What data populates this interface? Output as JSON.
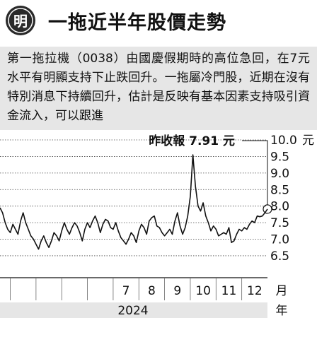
{
  "header": {
    "logo_char": "明",
    "title": "一拖近半年股價走勢"
  },
  "blurb": {
    "text": "第一拖拉機（0038）由國慶假期時的高位急回，在7元水平有明顯支持下止跌回升。一拖屬冷門股，近期在沒有特別消息下持續回升，估計是反映有基本因素支持吸引資金流入，可以跟進"
  },
  "colors": {
    "line": "#111111",
    "grid": "#444444",
    "header_circle": "#2a2a2a",
    "blurb_bg": "#e6e6e6",
    "year_band": "#e6e6e6"
  },
  "chart_data": {
    "type": "line",
    "annotation": "昨收報 7.91 元",
    "last_value": 7.91,
    "yticks": [
      10.0,
      9.5,
      9.0,
      8.5,
      8.0,
      7.5,
      7.0,
      6.5
    ],
    "ytick_labels": [
      "10.0",
      "9.5",
      "9.0",
      "8.5",
      "8.0",
      "7.5",
      "7.0",
      "6.5"
    ],
    "ylim": [
      6.2,
      10.0
    ],
    "y_unit": "元",
    "xlabel_unit": "月",
    "year_label": "2024",
    "year_unit": "年",
    "months": [
      {
        "label": "7",
        "pos": 0.1
      },
      {
        "label": "8",
        "pos": 0.3
      },
      {
        "label": "9",
        "pos": 0.5
      },
      {
        "label": "10",
        "pos": 0.7
      },
      {
        "label": "11",
        "pos": 0.9
      },
      {
        "label": "12",
        "pos": 1.1
      }
    ],
    "xlim": [
      -0.88,
      1.2
    ],
    "x": [
      -0.88,
      -0.86,
      -0.84,
      -0.82,
      -0.8,
      -0.78,
      -0.76,
      -0.74,
      -0.72,
      -0.7,
      -0.68,
      -0.66,
      -0.64,
      -0.62,
      -0.6,
      -0.58,
      -0.56,
      -0.54,
      -0.52,
      -0.5,
      -0.48,
      -0.46,
      -0.44,
      -0.42,
      -0.4,
      -0.38,
      -0.36,
      -0.34,
      -0.32,
      -0.3,
      -0.28,
      -0.26,
      -0.24,
      -0.22,
      -0.2,
      -0.18,
      -0.16,
      -0.14,
      -0.12,
      -0.1,
      -0.08,
      -0.06,
      -0.04,
      -0.02,
      0.0,
      0.02,
      0.04,
      0.06,
      0.08,
      0.1,
      0.12,
      0.14,
      0.16,
      0.18,
      0.2,
      0.22,
      0.24,
      0.26,
      0.28,
      0.3,
      0.32,
      0.34,
      0.36,
      0.38,
      0.4,
      0.42,
      0.44,
      0.46,
      0.48,
      0.5,
      0.52,
      0.54,
      0.56,
      0.58,
      0.6,
      0.62,
      0.64,
      0.66,
      0.68,
      0.7,
      0.72,
      0.74,
      0.76,
      0.78,
      0.8,
      0.82,
      0.84,
      0.86,
      0.88,
      0.9,
      0.92,
      0.94,
      0.96,
      0.98,
      1.0,
      1.02,
      1.04,
      1.06,
      1.08,
      1.1,
      1.12,
      1.14,
      1.16,
      1.18,
      1.2
    ],
    "y": [
      7.95,
      7.8,
      7.5,
      7.3,
      7.2,
      7.45,
      7.3,
      7.15,
      7.55,
      7.8,
      7.5,
      7.3,
      7.1,
      7.0,
      6.85,
      6.7,
      6.95,
      7.1,
      6.9,
      6.75,
      6.95,
      7.2,
      7.1,
      6.95,
      7.25,
      7.5,
      7.3,
      7.15,
      7.35,
      7.5,
      7.4,
      7.2,
      6.95,
      7.3,
      7.5,
      7.35,
      7.55,
      7.7,
      7.5,
      7.2,
      7.45,
      7.6,
      7.55,
      7.35,
      7.3,
      7.5,
      7.25,
      7.05,
      6.95,
      6.85,
      7.0,
      7.2,
      7.1,
      6.9,
      7.25,
      7.45,
      7.35,
      7.15,
      7.55,
      7.65,
      7.7,
      7.4,
      7.35,
      7.2,
      7.1,
      7.2,
      7.3,
      7.15,
      7.55,
      7.8,
      7.4,
      7.15,
      7.35,
      7.7,
      8.3,
      9.55,
      8.6,
      8.0,
      7.85,
      8.1,
      7.7,
      7.5,
      7.25,
      7.4,
      7.3,
      7.1,
      7.15,
      7.2,
      7.15,
      7.35,
      6.9,
      6.95,
      7.15,
      7.3,
      7.25,
      7.35,
      7.3,
      7.45,
      7.55,
      7.5,
      7.7,
      7.68,
      7.7,
      7.8,
      7.91
    ]
  }
}
